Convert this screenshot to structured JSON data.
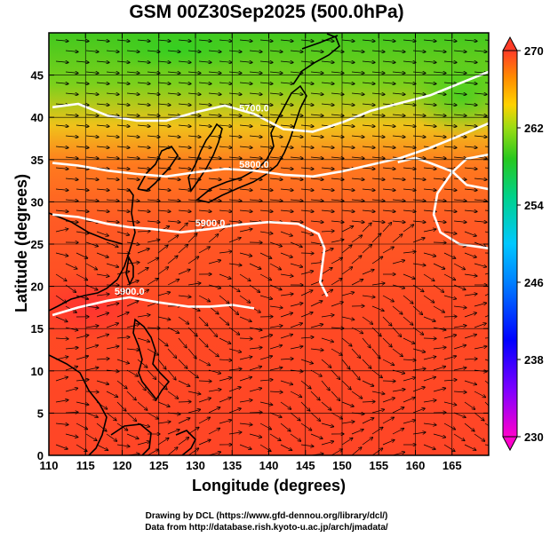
{
  "title": "GSM 00Z30Sep2025 (500.0hPa)",
  "x_axis": {
    "label": "Longitude (degrees)",
    "min": 110,
    "max": 170,
    "ticks": [
      110,
      115,
      120,
      125,
      130,
      135,
      140,
      145,
      150,
      155,
      160,
      165
    ]
  },
  "y_axis": {
    "label": "Latitude  (degrees)",
    "min": 0,
    "max": 50,
    "ticks": [
      0,
      5,
      10,
      15,
      20,
      25,
      30,
      35,
      40,
      45
    ]
  },
  "colorbar": {
    "min": 230,
    "max": 270,
    "ticks": [
      230,
      238,
      246,
      254,
      262,
      270
    ]
  },
  "contours": [
    {
      "label": "5700.0",
      "points": [
        [
          110.5,
          41.2
        ],
        [
          114,
          41.6
        ],
        [
          118,
          40.2
        ],
        [
          122,
          39.6
        ],
        [
          126,
          39.6
        ],
        [
          130,
          40.6
        ],
        [
          134,
          41.4
        ],
        [
          138,
          40.4
        ],
        [
          142,
          38.6
        ],
        [
          146,
          38.3
        ],
        [
          150,
          39.4
        ],
        [
          154,
          40.8
        ],
        [
          158,
          41.7
        ],
        [
          162,
          42.6
        ],
        [
          166,
          44
        ],
        [
          170,
          45.4
        ]
      ]
    },
    {
      "label": "5800.0",
      "points": [
        [
          110.5,
          34.6
        ],
        [
          114,
          34.3
        ],
        [
          118,
          33.7
        ],
        [
          122,
          33.3
        ],
        [
          126,
          33
        ],
        [
          130,
          33.5
        ],
        [
          134,
          33.9
        ],
        [
          138,
          33.7
        ],
        [
          142,
          33.2
        ],
        [
          146,
          33
        ],
        [
          150,
          33.6
        ],
        [
          154,
          34.4
        ],
        [
          158,
          35.2
        ],
        [
          162,
          36.4
        ],
        [
          166,
          37.8
        ],
        [
          170,
          39.3
        ]
      ]
    },
    {
      "label": "5900.0",
      "points": [
        [
          110.5,
          28.5
        ],
        [
          114,
          28.2
        ],
        [
          118,
          27.4
        ],
        [
          121,
          27
        ],
        [
          124,
          26.8
        ],
        [
          128,
          26.4
        ],
        [
          132,
          26.8
        ],
        [
          136,
          27.3
        ],
        [
          140,
          27.6
        ],
        [
          144,
          27.4
        ],
        [
          146.8,
          26.2
        ],
        [
          147.6,
          24.5
        ],
        [
          147.3,
          22.5
        ],
        [
          147,
          20.5
        ],
        [
          148,
          18.8
        ]
      ]
    },
    {
      "label": "5900.0",
      "points": [
        [
          110.5,
          16.6
        ],
        [
          114,
          17.5
        ],
        [
          118,
          18.3
        ],
        [
          121,
          18.7
        ],
        [
          125,
          18.1
        ],
        [
          129,
          17.6
        ],
        [
          132,
          17.6
        ],
        [
          135,
          17.8
        ],
        [
          138,
          17.4
        ]
      ]
    },
    {
      "label": "",
      "points": [
        [
          170,
          31.5
        ],
        [
          167,
          32
        ],
        [
          165,
          33.6
        ],
        [
          162,
          34.6
        ],
        [
          160,
          35.2
        ],
        [
          157.6,
          34.7
        ]
      ]
    },
    {
      "label": "",
      "points": [
        [
          170,
          35.6
        ],
        [
          167,
          35.1
        ],
        [
          165,
          33.5
        ],
        [
          163,
          31
        ],
        [
          162.5,
          28.5
        ],
        [
          163.4,
          26.4
        ],
        [
          166,
          25
        ],
        [
          170,
          24.5
        ]
      ]
    }
  ],
  "legend_footer": {
    "credit_line_1": "Drawing by DCL (https://www.gfd-dennou.org/library/dcl/)",
    "credit_line_2": "Data from http://database.rish.kyoto-u.ac.jp/arch/jmadata/"
  },
  "colors": {
    "magenta": "#ff00cc",
    "blue": "#0000ff",
    "cyan": "#00c8ff",
    "green": "#28c81e",
    "yellow": "#ffd200",
    "orange": "#ff7800",
    "red": "#ff3c28"
  }
}
